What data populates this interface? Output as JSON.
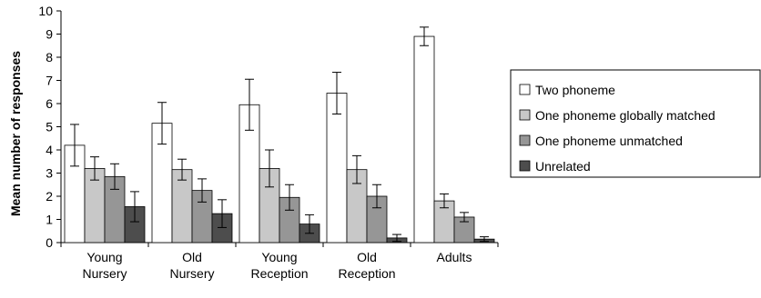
{
  "chart_data": {
    "type": "bar",
    "title": "",
    "xlabel": "",
    "ylabel": "Mean number of responses",
    "ylim": [
      0,
      10
    ],
    "yticks": [
      0,
      1,
      2,
      3,
      4,
      5,
      6,
      7,
      8,
      9,
      10
    ],
    "grid": false,
    "legend_position": "right",
    "categories": [
      [
        "Young",
        "Nursery"
      ],
      [
        "Old",
        "Nursery"
      ],
      [
        "Young",
        "Reception"
      ],
      [
        "Old",
        "Reception"
      ],
      [
        "Adults"
      ]
    ],
    "series": [
      {
        "name": "Two phoneme",
        "color": "#ffffff",
        "values": [
          4.2,
          5.15,
          5.95,
          6.45,
          8.9
        ],
        "errors": [
          0.9,
          0.9,
          1.1,
          0.9,
          0.4
        ]
      },
      {
        "name": "One phoneme globally matched",
        "color": "#c8c8c8",
        "values": [
          3.2,
          3.15,
          3.2,
          3.15,
          1.8
        ],
        "errors": [
          0.5,
          0.45,
          0.8,
          0.6,
          0.3
        ]
      },
      {
        "name": "One phoneme unmatched",
        "color": "#969696",
        "values": [
          2.85,
          2.25,
          1.95,
          2.0,
          1.1
        ],
        "errors": [
          0.55,
          0.5,
          0.55,
          0.5,
          0.2
        ]
      },
      {
        "name": "Unrelated",
        "color": "#4d4d4d",
        "values": [
          1.55,
          1.25,
          0.8,
          0.2,
          0.15
        ],
        "errors": [
          0.65,
          0.6,
          0.4,
          0.15,
          0.1
        ]
      }
    ]
  }
}
